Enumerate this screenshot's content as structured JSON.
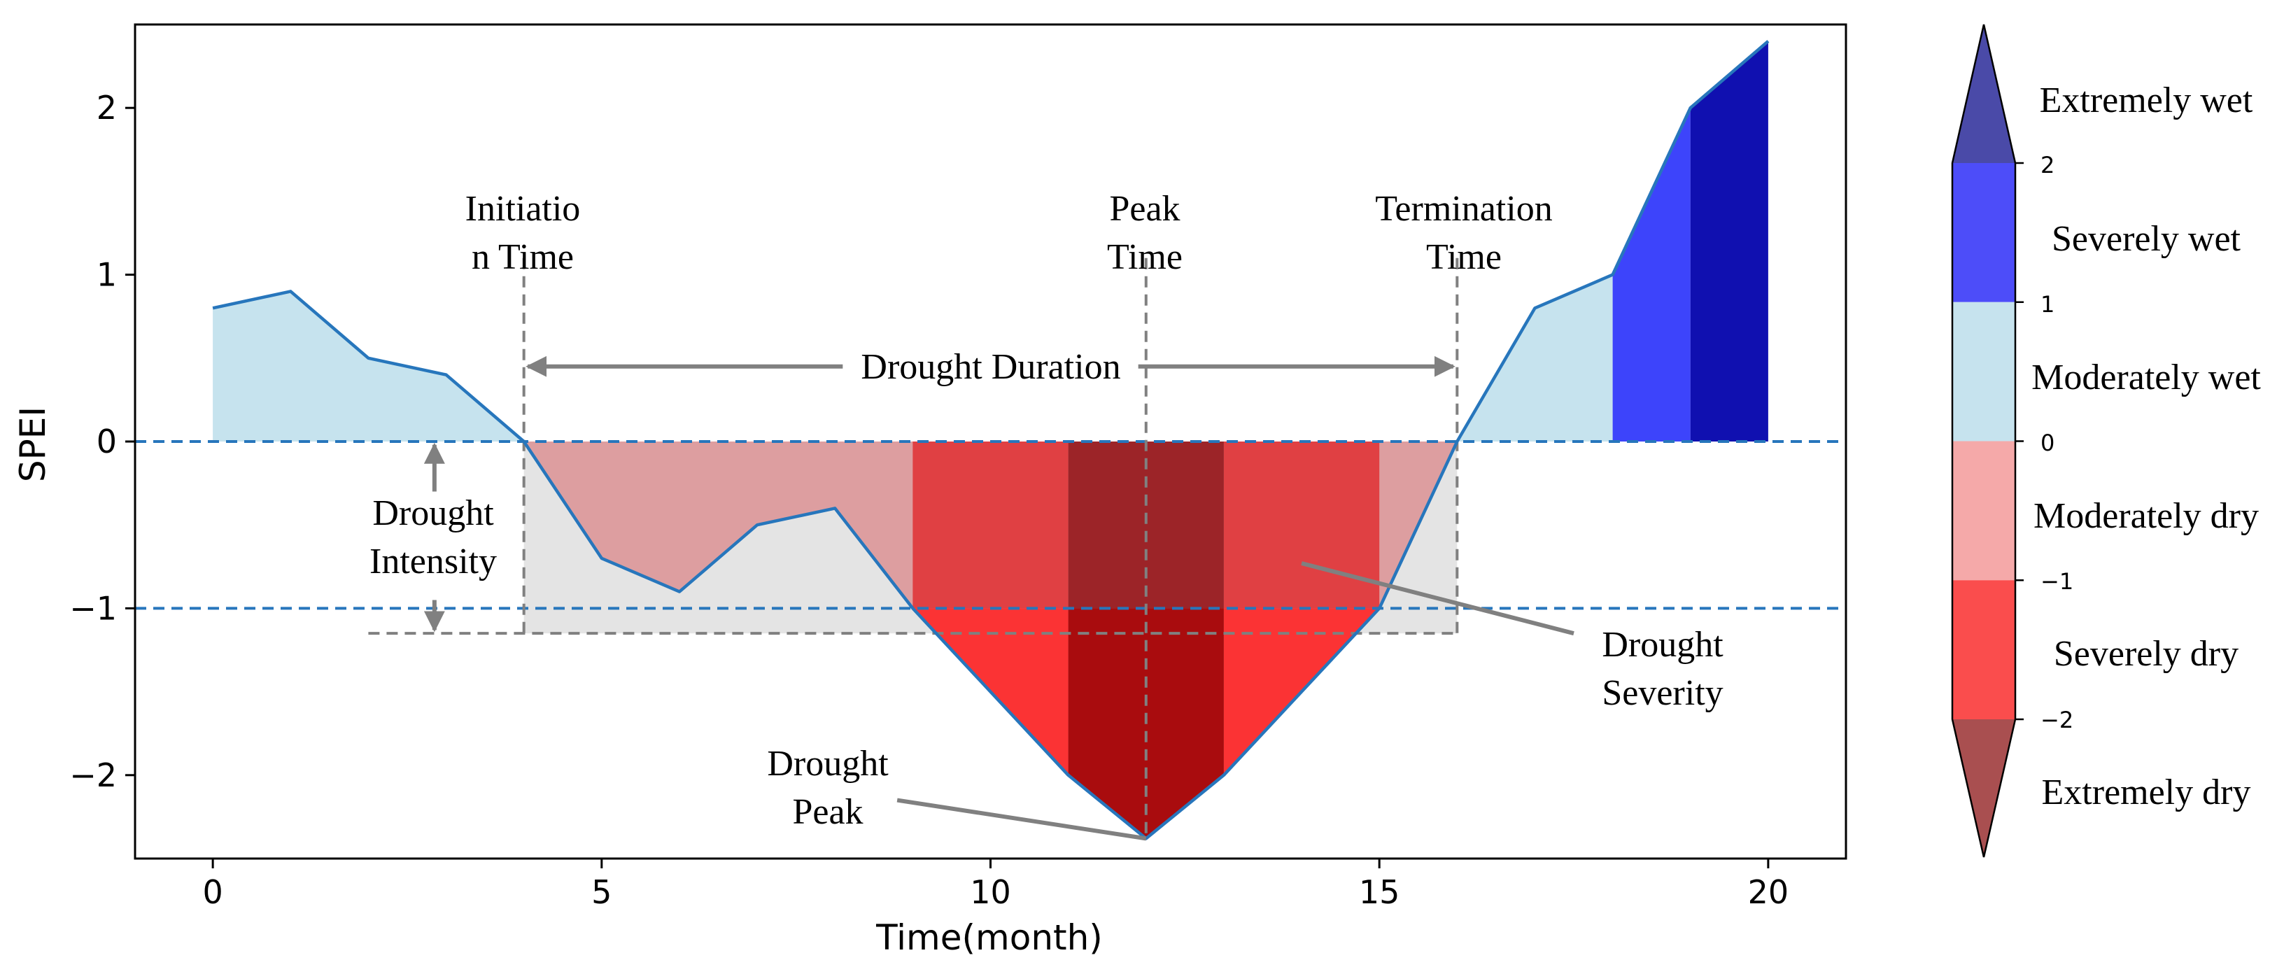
{
  "chart_data": {
    "type": "area",
    "title": "",
    "xlabel": "Time(month)",
    "ylabel": "SPEI",
    "xlim": [
      -1,
      21
    ],
    "ylim": [
      -2.5,
      2.5
    ],
    "xticks": [
      0,
      5,
      10,
      15,
      20
    ],
    "yticks": [
      -2,
      -1,
      0,
      1,
      2
    ],
    "x": [
      0,
      1,
      2,
      3,
      4,
      5,
      6,
      7,
      8,
      9,
      10,
      11,
      12,
      13,
      14,
      15,
      16,
      17,
      18,
      19,
      20
    ],
    "y": [
      0.8,
      0.9,
      0.5,
      0.4,
      0.0,
      -0.7,
      -0.9,
      -0.5,
      -0.4,
      -1.0,
      -1.5,
      -2.0,
      -2.38,
      -2.0,
      -1.5,
      -1.0,
      0.0,
      0.8,
      1.0,
      2.0,
      2.4
    ],
    "reference_lines": [
      0,
      -1
    ],
    "threshold_line": -1.15,
    "drought_start": 4,
    "drought_peak": 12,
    "drought_end": 16,
    "colors": {
      "line": "#2776bc",
      "reference": "#2776bc",
      "moderately_wet": "#c6e3ee",
      "severely_wet": "#3d44fb",
      "extremely_wet": "#1010b0",
      "moderately_dry": "#dd9ea0",
      "severely_dry_bar": "#e04043",
      "severely_dry_deep": "#fb3334",
      "extremely_dry_bar": "#9c2428",
      "extremely_dry_deep": "#a90c0e",
      "drought_box": "#e4e4e4",
      "annotation": "#808080"
    },
    "annotations": {
      "initiation": [
        "Initiatio",
        "n Time"
      ],
      "peak_time": [
        "Peak",
        "Time"
      ],
      "termination": [
        "Termination",
        "Time"
      ],
      "duration": "Drought Duration",
      "intensity": [
        "Drought",
        "Intensity"
      ],
      "severity": [
        "Drought",
        "Severity"
      ],
      "peak": [
        "Drought",
        "Peak"
      ]
    },
    "colorbar": {
      "boundaries": [
        -2,
        -1,
        0,
        1,
        2
      ],
      "tick_labels": [
        "2",
        "1",
        "0",
        "−1",
        "−2"
      ],
      "colors": {
        "extremely_wet": "#4a4aa8",
        "severely_wet": "#4d4df9",
        "moderately_wet": "#c6e3ee",
        "moderately_dry": "#f5a9a9",
        "severely_dry": "#fa4d4d",
        "extremely_dry": "#a94f50"
      },
      "categories": [
        "Extremely wet",
        "Severely wet",
        "Moderately wet",
        "Moderately dry",
        "Severely dry",
        "Extremely dry"
      ]
    }
  }
}
